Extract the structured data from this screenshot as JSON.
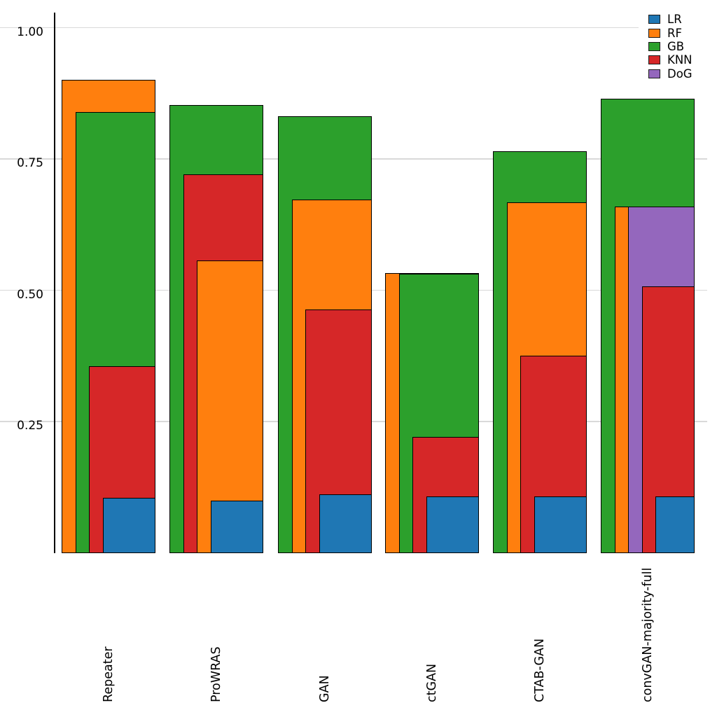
{
  "chart_data": {
    "type": "bar",
    "variant": "overlaid-grouped",
    "description": "Grouped overlay bar chart: within each category the bars are drawn back-to-front from widest to narrowest, right-aligned, tallest in back. Black bar edges, white background, light horizontal gridlines.",
    "title": "",
    "xlabel": "",
    "ylabel": "",
    "ylim": [
      0,
      1.03
    ],
    "yticks": [
      0.25,
      0.5,
      0.75,
      1.0
    ],
    "ytick_labels": [
      "0.25",
      "0.50",
      "0.75",
      "1.00"
    ],
    "grid": "horizontal",
    "legend_position": "top-right",
    "categories": [
      "Repeater",
      "ProWRAS",
      "GAN",
      "ctGAN",
      "CTAB-GAN",
      "convGAN-majority-full"
    ],
    "series": [
      {
        "name": "LR",
        "color": "#1f77b4",
        "values": [
          0.105,
          0.099,
          0.111,
          0.108,
          0.108,
          0.108
        ]
      },
      {
        "name": "RF",
        "color": "#ff7f0e",
        "values": [
          0.901,
          0.557,
          0.673,
          0.533,
          0.668,
          0.66
        ]
      },
      {
        "name": "GB",
        "color": "#2ca02c",
        "values": [
          0.84,
          0.853,
          0.832,
          0.532,
          0.765,
          0.865
        ]
      },
      {
        "name": "KNN",
        "color": "#d62728",
        "values": [
          0.356,
          0.721,
          0.464,
          0.221,
          0.375,
          0.508
        ]
      },
      {
        "name": "DoG",
        "color": "#9467bd",
        "values": [
          null,
          null,
          null,
          null,
          null,
          0.659
        ]
      }
    ],
    "groups": [
      {
        "category": "Repeater",
        "bars": [
          {
            "series": "RF",
            "value": 0.901
          },
          {
            "series": "GB",
            "value": 0.84
          },
          {
            "series": "KNN",
            "value": 0.356
          },
          {
            "series": "LR",
            "value": 0.105
          }
        ]
      },
      {
        "category": "ProWRAS",
        "bars": [
          {
            "series": "GB",
            "value": 0.853
          },
          {
            "series": "KNN",
            "value": 0.721
          },
          {
            "series": "RF",
            "value": 0.557
          },
          {
            "series": "LR",
            "value": 0.099
          }
        ]
      },
      {
        "category": "GAN",
        "bars": [
          {
            "series": "GB",
            "value": 0.832
          },
          {
            "series": "RF",
            "value": 0.673
          },
          {
            "series": "KNN",
            "value": 0.464
          },
          {
            "series": "LR",
            "value": 0.111
          }
        ]
      },
      {
        "category": "ctGAN",
        "bars": [
          {
            "series": "RF",
            "value": 0.533
          },
          {
            "series": "GB",
            "value": 0.532
          },
          {
            "series": "KNN",
            "value": 0.221
          },
          {
            "series": "LR",
            "value": 0.108
          }
        ]
      },
      {
        "category": "CTAB-GAN",
        "bars": [
          {
            "series": "GB",
            "value": 0.765
          },
          {
            "series": "RF",
            "value": 0.668
          },
          {
            "series": "KNN",
            "value": 0.375
          },
          {
            "series": "LR",
            "value": 0.108
          }
        ]
      },
      {
        "category": "convGAN-majority-full",
        "bars": [
          {
            "series": "GB",
            "value": 0.865
          },
          {
            "series": "RF",
            "value": 0.66
          },
          {
            "series": "DoG",
            "value": 0.659
          },
          {
            "series": "KNN",
            "value": 0.508
          },
          {
            "series": "LR",
            "value": 0.108
          }
        ]
      }
    ]
  },
  "legend": {
    "items": [
      {
        "label": "LR",
        "color": "#1f77b4"
      },
      {
        "label": "RF",
        "color": "#ff7f0e"
      },
      {
        "label": "GB",
        "color": "#2ca02c"
      },
      {
        "label": "KNN",
        "color": "#d62728"
      },
      {
        "label": "DoG",
        "color": "#9467bd"
      }
    ]
  },
  "colors": {
    "background": "#ffffff",
    "gridline": "#d9d9d9",
    "axis": "#000000",
    "bar_edge": "#000000"
  }
}
